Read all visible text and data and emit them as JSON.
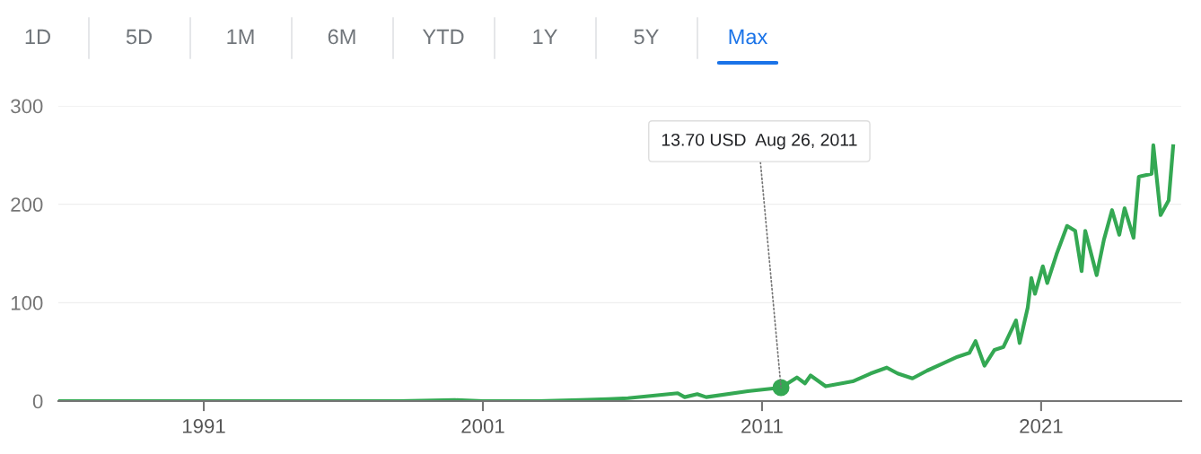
{
  "chart_data": {
    "type": "line",
    "x": [
      1985.8,
      1990,
      1995,
      1998,
      2000.0,
      2001,
      2003,
      2004.5,
      2005.5,
      2006.2,
      2007.98,
      2008.23,
      2008.68,
      2009.0,
      2010.49,
      2011.68,
      2012.25,
      2012.54,
      2012.74,
      2013.28,
      2014.25,
      2014.89,
      2015.47,
      2015.86,
      2016.39,
      2016.92,
      2017.46,
      2018.0,
      2018.43,
      2018.65,
      2018.97,
      2019.33,
      2019.65,
      2020.1,
      2020.23,
      2020.52,
      2020.65,
      2020.78,
      2021.06,
      2021.22,
      2021.55,
      2021.93,
      2022.22,
      2022.45,
      2022.58,
      2022.99,
      2023.25,
      2023.54,
      2023.8,
      2023.99,
      2024.31,
      2024.5,
      2024.96,
      2025.02,
      2025.28,
      2025.57,
      2025.73
    ],
    "series": [
      {
        "color": "#34a853",
        "values": [
          0,
          0,
          0,
          0,
          1,
          0,
          0,
          1,
          2,
          3,
          8,
          4,
          7,
          4,
          10,
          13.7,
          24,
          18,
          26,
          15,
          20,
          28,
          34,
          28,
          23,
          31,
          38,
          45,
          49,
          61,
          36,
          52,
          55,
          82,
          59,
          95,
          125,
          109,
          137,
          120,
          149,
          178,
          173,
          132,
          173,
          128,
          164,
          194,
          169,
          196,
          166,
          228,
          231,
          260,
          189,
          204,
          259
        ]
      }
    ],
    "xlim": [
      1985.79,
      2026.02
    ],
    "xticks": [
      1991,
      2001,
      2011,
      2021
    ],
    "ylim": [
      0,
      300
    ],
    "yticks": [
      0,
      100,
      200,
      300
    ],
    "grid": "y",
    "annotations": [
      {
        "text": "13.70 USD  Aug 26, 2011",
        "x": 2011.68,
        "y": 13.7
      },
      "1D",
      "5D",
      "1M",
      "6M",
      "YTD",
      "1Y",
      "5Y",
      "Max"
    ]
  }
}
